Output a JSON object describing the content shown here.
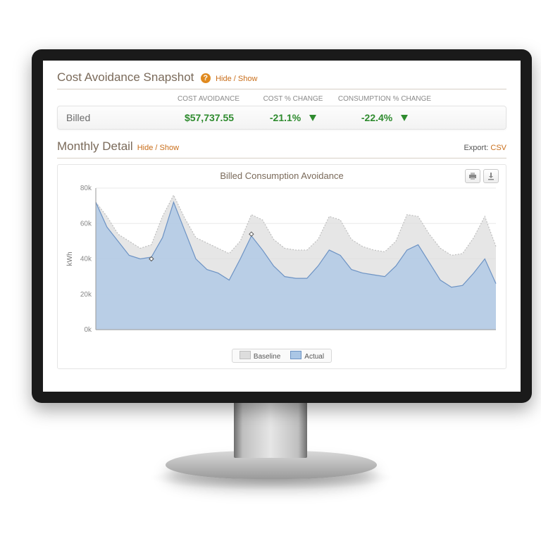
{
  "sections": {
    "snapshot": {
      "title": "Cost Avoidance Snapshot",
      "toggle_label": "Hide / Show",
      "columns": [
        "COST AVOIDANCE",
        "COST % CHANGE",
        "CONSUMPTION % CHANGE"
      ],
      "row": {
        "label": "Billed",
        "cost_avoidance": "$57,737.55",
        "cost_pct": "-21.1%",
        "consumption_pct": "-22.4%",
        "value_color": "#2e8b2e",
        "arrow_color": "#2e8b2e"
      }
    },
    "detail": {
      "title": "Monthly Detail",
      "toggle_label": "Hide / Show",
      "export_label": "Export:",
      "export_link": "CSV"
    }
  },
  "chart": {
    "type": "area",
    "title": "Billed Consumption Avoidance",
    "background_color": "#ffffff",
    "grid_color": "#e9e9e9",
    "axis_color": "#9a9a9a",
    "y_label": "kWh",
    "y_label_fontsize": 10,
    "title_fontsize": 13,
    "tick_fontsize": 10,
    "ylim": [
      0,
      80
    ],
    "ytick_step": 20,
    "ytick_labels": [
      "0k",
      "20k",
      "40k",
      "60k",
      "80k"
    ],
    "x_count": 37,
    "series": {
      "baseline": {
        "label": "Baseline",
        "fill": "#dddddd",
        "fill_opacity": 0.75,
        "stroke": "#bfbfbf",
        "stroke_dash": "2,2",
        "values": [
          72,
          64,
          54,
          50,
          46,
          48,
          64,
          76,
          63,
          52,
          49,
          46,
          43,
          50,
          65,
          62,
          51,
          46,
          45,
          45,
          51,
          64,
          62,
          51,
          47,
          45,
          44,
          50,
          65,
          64,
          54,
          46,
          42,
          43,
          52,
          64,
          47
        ]
      },
      "actual": {
        "label": "Actual",
        "fill": "#aac6e5",
        "fill_opacity": 0.75,
        "stroke": "#6d93c4",
        "values": [
          72,
          58,
          50,
          42,
          40,
          41,
          52,
          72,
          56,
          40,
          34,
          32,
          28,
          40,
          53,
          45,
          36,
          30,
          29,
          29,
          36,
          45,
          42,
          34,
          32,
          31,
          30,
          36,
          45,
          48,
          38,
          28,
          24,
          25,
          32,
          40,
          26
        ]
      }
    },
    "markers": [
      {
        "x_index": 5,
        "y": 40,
        "shape": "diamond",
        "size": 6,
        "stroke": "#555",
        "fill": "#fff"
      },
      {
        "x_index": 14,
        "y": 54,
        "shape": "diamond",
        "size": 6,
        "stroke": "#555",
        "fill": "#fff"
      }
    ],
    "legend": [
      "Baseline",
      "Actual"
    ]
  },
  "colors": {
    "heading": "#7a6a5a",
    "link": "#c96e1a",
    "help_icon_bg": "#e08a1f"
  }
}
